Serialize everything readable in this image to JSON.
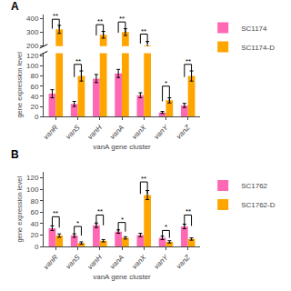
{
  "chart_data": [
    {
      "type": "bar",
      "title": "A",
      "categories": [
        "vanR",
        "vanS",
        "vanH",
        "vanA",
        "vanX",
        "vanY",
        "vanZ"
      ],
      "series": [
        {
          "name": "SC1174",
          "color": "#FF69B4",
          "values": [
            45,
            25,
            75,
            85,
            42,
            8,
            22
          ],
          "errors": [
            8,
            5,
            8,
            8,
            5,
            2,
            4
          ]
        },
        {
          "name": "SC1174-D",
          "color": "#FFA500",
          "values": [
            320,
            80,
            280,
            300,
            200,
            32,
            80
          ],
          "errors": [
            30,
            10,
            25,
            25,
            30,
            5,
            10
          ]
        }
      ],
      "xlabel": "vanA gene cluster",
      "ylabel": "gene expression level",
      "ylim": [
        [
          0,
          125
        ],
        [
          195,
          430
        ]
      ],
      "yticks": [
        [
          0,
          20,
          40,
          60,
          80,
          100,
          120
        ],
        [
          200,
          300,
          400
        ]
      ],
      "grid": false,
      "legend": "right",
      "annotations": [
        {
          "category": "vanR",
          "text": "**",
          "bracket": [
            325,
            395
          ]
        },
        {
          "category": "vanH",
          "text": "**",
          "bracket": [
            275,
            355
          ]
        },
        {
          "category": "vanA",
          "text": "**",
          "bracket": [
            295,
            375
          ]
        },
        {
          "category": "vanX",
          "text": "**",
          "bracket": [
            215,
            285
          ]
        },
        {
          "category": "vanS",
          "text": "**",
          "bracket": [
            78,
            103
          ]
        },
        {
          "category": "vanY",
          "text": "*",
          "bracket": [
            30,
            60
          ]
        },
        {
          "category": "vanZ",
          "text": "**",
          "bracket": [
            78,
            103
          ]
        }
      ]
    },
    {
      "type": "bar",
      "title": "B",
      "categories": [
        "vanR",
        "vanS",
        "vanH",
        "vanA",
        "vanX",
        "vanY",
        "vanZ"
      ],
      "series": [
        {
          "name": "SC1762",
          "color": "#FF69B4",
          "values": [
            32,
            19,
            37,
            26,
            20,
            15,
            35
          ],
          "errors": [
            4,
            3,
            4,
            3,
            3,
            3,
            4
          ]
        },
        {
          "name": "SC1762-D",
          "color": "#FFA500",
          "values": [
            19,
            6,
            10,
            15,
            90,
            8,
            13
          ],
          "errors": [
            3,
            2,
            2,
            2,
            8,
            2,
            2
          ]
        }
      ],
      "xlabel": "vanA gene cluster",
      "ylabel": "gene expression level",
      "ylim": [
        0,
        130
      ],
      "yticks": [
        0,
        20,
        40,
        60,
        80,
        100,
        120
      ],
      "grid": false,
      "legend": "right",
      "annotations": [
        {
          "category": "vanR",
          "text": "**",
          "bracket": [
            33,
            52
          ]
        },
        {
          "category": "vanS",
          "text": "*",
          "bracket": [
            19,
            35
          ]
        },
        {
          "category": "vanH",
          "text": "**",
          "bracket": [
            37,
            55
          ]
        },
        {
          "category": "vanA",
          "text": "*",
          "bracket": [
            26,
            42
          ]
        },
        {
          "category": "vanX",
          "text": "**",
          "bracket": [
            92,
            113
          ]
        },
        {
          "category": "vanY",
          "text": "*",
          "bracket": [
            15,
            28
          ]
        },
        {
          "category": "vanZ",
          "text": "**",
          "bracket": [
            36,
            55
          ]
        }
      ]
    }
  ]
}
